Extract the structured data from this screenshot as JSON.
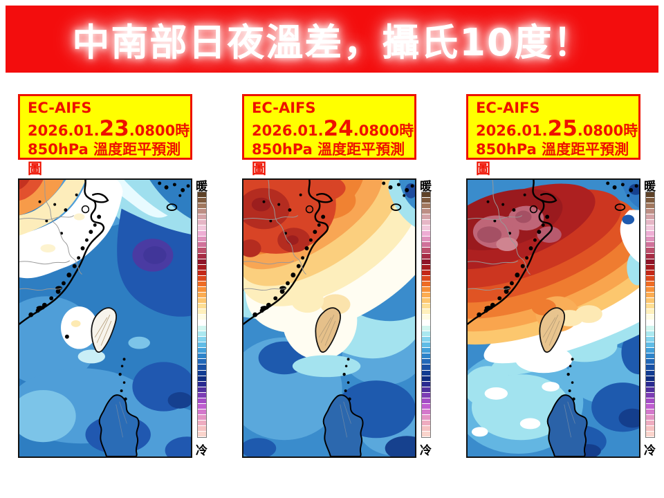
{
  "banner": {
    "title": "中南部日夜溫差，攝氏10度！",
    "bg_color": "#f30d0d",
    "text_color": "#ffffff"
  },
  "panels": [
    {
      "model": "EC-AIFS",
      "date_prefix": "2026.01.",
      "day": "23",
      "date_suffix": ".0800時",
      "subtitle": "850hPa 溫度距平預測圖",
      "anomaly_pattern": "cold-dominant, warm only far northwest"
    },
    {
      "model": "EC-AIFS",
      "date_prefix": "2026.01.",
      "day": "24",
      "date_suffix": ".0800時",
      "subtitle": "850hPa 溫度距平預測圖",
      "anomaly_pattern": "warm area expanding over northern China"
    },
    {
      "model": "EC-AIFS",
      "date_prefix": "2026.01.",
      "day": "25",
      "date_suffix": ".0800時",
      "subtitle": "850hPa 溫度距平預測圖",
      "anomaly_pattern": "warm-dominant over China, cold southeast sea"
    }
  ],
  "colorbar": {
    "warm_label": "暖",
    "cold_label": "冷",
    "colors": [
      "#5e4228",
      "#7e5a3e",
      "#a1785f",
      "#bd8f85",
      "#d4a4a8",
      "#e6b6c6",
      "#f2c8dc",
      "#eeadd4",
      "#e092bc",
      "#d0719a",
      "#bc4f6c",
      "#a62c44",
      "#8e1428",
      "#a51a1e",
      "#c32818",
      "#dc481c",
      "#ee6c24",
      "#f89038",
      "#fcac52",
      "#fdc670",
      "#fede94",
      "#fff0bc",
      "#fffce4",
      "#ffffff",
      "#d2f6f0",
      "#aae8f0",
      "#84d4ee",
      "#60bce6",
      "#42a0da",
      "#2e84ca",
      "#2268b8",
      "#1950a4",
      "#123c92",
      "#0f2c80",
      "#2a2a90",
      "#50309e",
      "#7c3cb4",
      "#a44cc6",
      "#c05ed0",
      "#d478cc",
      "#e494c4",
      "#efacc0",
      "#f6c2c2",
      "#fad4cc"
    ]
  },
  "style": {
    "label_box_bg": "#ffff00",
    "label_box_border": "#ee1100",
    "label_text_color": "#ee1100"
  }
}
